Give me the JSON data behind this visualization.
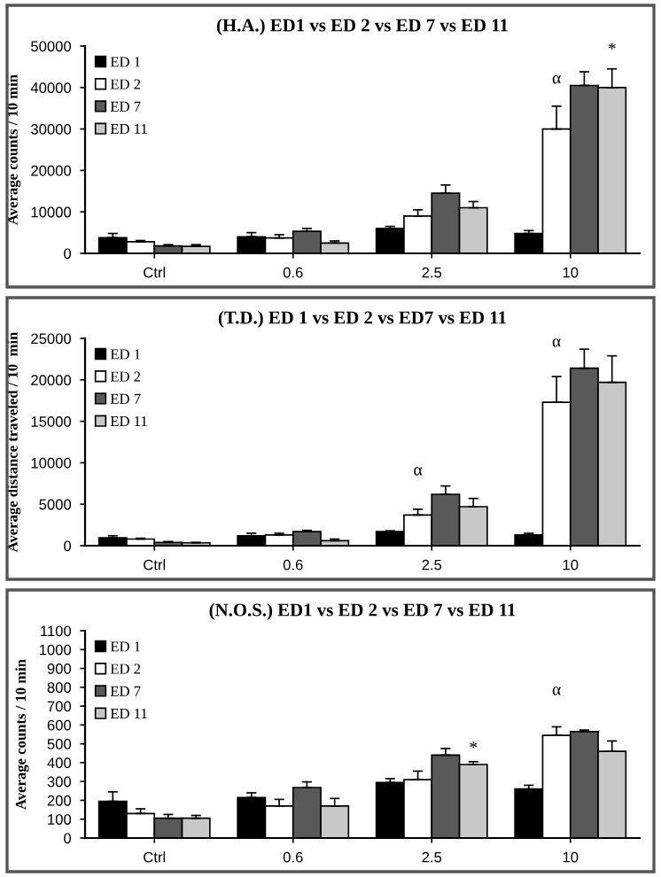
{
  "chart_data": [
    {
      "type": "bar",
      "title": "(H.A.) ED1 vs ED 2 vs ED 7 vs ED 11",
      "ylabel": "Average counts / 10 min",
      "categories": [
        "Ctrl",
        "0.6",
        "2.5",
        "10"
      ],
      "ylim": [
        0,
        50000
      ],
      "yticks": [
        0,
        10000,
        20000,
        30000,
        40000,
        50000
      ],
      "legend": "top left",
      "series": [
        {
          "name": "ED 1",
          "color": "#000000",
          "values": [
            3800,
            4000,
            6000,
            4800
          ],
          "errors": [
            1000,
            1000,
            500,
            700
          ]
        },
        {
          "name": "ED 2",
          "color": "#ffffff",
          "values": [
            2800,
            3700,
            9000,
            30000
          ],
          "errors": [
            300,
            800,
            1500,
            5500
          ]
        },
        {
          "name": "ED 7",
          "color": "#595959",
          "values": [
            1800,
            5300,
            14500,
            40500
          ],
          "errors": [
            300,
            700,
            2000,
            3300
          ]
        },
        {
          "name": "ED 11",
          "color": "#c8c8c8",
          "values": [
            1700,
            2500,
            11000,
            40000
          ],
          "errors": [
            400,
            500,
            1500,
            4500
          ]
        }
      ],
      "annotations": [
        "α",
        "*"
      ]
    },
    {
      "type": "bar",
      "title": "(T.D.) ED 1 vs ED 2 vs ED7 vs ED 11",
      "ylabel": "Average distance traveled / 10  min",
      "categories": [
        "Ctrl",
        "0.6",
        "2.5",
        "10"
      ],
      "ylim": [
        0,
        25000
      ],
      "yticks": [
        0,
        5000,
        10000,
        15000,
        20000,
        25000
      ],
      "legend": "top left",
      "series": [
        {
          "name": "ED 1",
          "color": "#000000",
          "values": [
            950,
            1200,
            1700,
            1300
          ],
          "errors": [
            250,
            300,
            100,
            200
          ]
        },
        {
          "name": "ED 2",
          "color": "#ffffff",
          "values": [
            800,
            1300,
            3700,
            17300
          ],
          "errors": [
            100,
            200,
            700,
            3100
          ]
        },
        {
          "name": "ED 7",
          "color": "#595959",
          "values": [
            400,
            1700,
            6200,
            21400
          ],
          "errors": [
            100,
            150,
            1000,
            2300
          ]
        },
        {
          "name": "ED 11",
          "color": "#c8c8c8",
          "values": [
            350,
            600,
            4700,
            19700
          ],
          "errors": [
            50,
            200,
            1000,
            3200
          ]
        }
      ],
      "annotations": [
        "α",
        "α"
      ]
    },
    {
      "type": "bar",
      "title": "(N.O.S.) ED1 vs ED 2 vs ED 7 vs ED 11",
      "ylabel": "Average counts / 10 min",
      "categories": [
        "Ctrl",
        "0.6",
        "2.5",
        "10"
      ],
      "ylim": [
        0,
        1100
      ],
      "yticks": [
        0,
        100,
        200,
        300,
        400,
        500,
        600,
        700,
        800,
        900,
        1000,
        1100
      ],
      "legend": "top left",
      "series": [
        {
          "name": "ED 1",
          "color": "#000000",
          "values": [
            195,
            215,
            295,
            260
          ],
          "errors": [
            50,
            25,
            20,
            20
          ]
        },
        {
          "name": "ED 2",
          "color": "#ffffff",
          "values": [
            130,
            170,
            310,
            545
          ],
          "errors": [
            25,
            35,
            45,
            45
          ]
        },
        {
          "name": "ED 7",
          "color": "#595959",
          "values": [
            105,
            268,
            440,
            565
          ],
          "errors": [
            20,
            30,
            35,
            8
          ]
        },
        {
          "name": "ED 11",
          "color": "#c8c8c8",
          "values": [
            105,
            170,
            390,
            460
          ],
          "errors": [
            15,
            40,
            15,
            55
          ]
        }
      ],
      "annotations": [
        "*",
        "α"
      ]
    }
  ]
}
